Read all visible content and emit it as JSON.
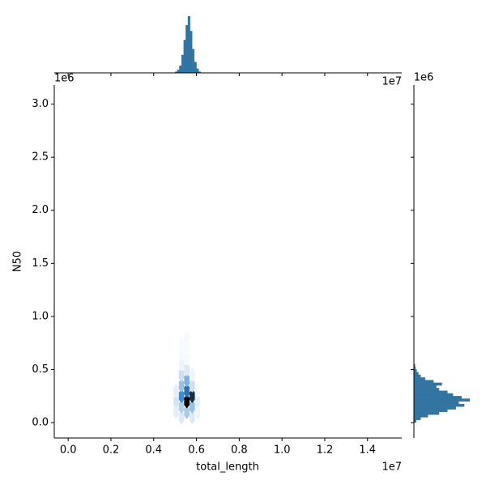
{
  "chart_data": {
    "type": "hexbin-joint",
    "x_label": "total_length",
    "y_label": "N50",
    "x_offset_label": "1e7",
    "y_offset_label": "1e6",
    "xlim": [
      -0.065,
      1.56
    ],
    "ylim": [
      -0.145,
      3.18
    ],
    "xticks": [
      {
        "value": 0,
        "label": "0.0"
      },
      0.2,
      0.4,
      0.6,
      0.8,
      {
        "value": 1,
        "label": "1.0"
      },
      1.2,
      1.4
    ],
    "yticks": [
      {
        "value": 0,
        "label": "0.0"
      },
      0.5,
      {
        "value": 1,
        "label": "1.0"
      },
      1.5,
      {
        "value": 2,
        "label": "2.0"
      },
      2.5,
      {
        "value": 3,
        "label": "3.0"
      }
    ],
    "color": "#3274a1",
    "hexbins": [
      {
        "x": 0.505,
        "y": 0.1,
        "count": 3
      },
      {
        "x": 0.505,
        "y": 0.2,
        "count": 5
      },
      {
        "x": 0.505,
        "y": 0.3,
        "count": 3
      },
      {
        "x": 0.53,
        "y": 0.05,
        "count": 4
      },
      {
        "x": 0.53,
        "y": 0.15,
        "count": 9
      },
      {
        "x": 0.53,
        "y": 0.25,
        "count": 22
      },
      {
        "x": 0.53,
        "y": 0.35,
        "count": 12
      },
      {
        "x": 0.53,
        "y": 0.45,
        "count": 6
      },
      {
        "x": 0.53,
        "y": 0.55,
        "count": 2
      },
      {
        "x": 0.53,
        "y": 0.65,
        "count": 1
      },
      {
        "x": 0.53,
        "y": 0.75,
        "count": 1
      },
      {
        "x": 0.555,
        "y": 0.1,
        "count": 10
      },
      {
        "x": 0.555,
        "y": 0.2,
        "count": 40
      },
      {
        "x": 0.555,
        "y": 0.3,
        "count": 26
      },
      {
        "x": 0.555,
        "y": 0.4,
        "count": 15
      },
      {
        "x": 0.555,
        "y": 0.5,
        "count": 4
      },
      {
        "x": 0.555,
        "y": 0.6,
        "count": 1
      },
      {
        "x": 0.555,
        "y": 0.7,
        "count": 1
      },
      {
        "x": 0.555,
        "y": 0.8,
        "count": 1
      },
      {
        "x": 0.58,
        "y": 0.05,
        "count": 4
      },
      {
        "x": 0.58,
        "y": 0.15,
        "count": 12
      },
      {
        "x": 0.58,
        "y": 0.25,
        "count": 34
      },
      {
        "x": 0.58,
        "y": 0.35,
        "count": 6
      },
      {
        "x": 0.58,
        "y": 0.45,
        "count": 2
      },
      {
        "x": 0.605,
        "y": 0.1,
        "count": 2
      },
      {
        "x": 0.605,
        "y": 0.2,
        "count": 3
      },
      {
        "x": 0.605,
        "y": 0.3,
        "count": 1
      }
    ],
    "x_hist": {
      "bins": [
        0.5,
        0.51,
        0.52,
        0.53,
        0.54,
        0.55,
        0.56,
        0.57,
        0.58,
        0.59,
        0.6,
        0.61,
        0.62
      ],
      "counts": [
        2,
        5,
        12,
        30,
        55,
        80,
        95,
        70,
        40,
        18,
        7,
        2
      ]
    },
    "y_hist": {
      "bins": [
        0,
        0.025,
        0.05,
        0.075,
        0.1,
        0.125,
        0.15,
        0.175,
        0.2,
        0.225,
        0.25,
        0.275,
        0.3,
        0.325,
        0.35,
        0.375,
        0.4,
        0.425,
        0.45,
        0.475,
        0.5,
        0.525,
        0.55
      ],
      "counts": [
        4,
        12,
        25,
        45,
        60,
        75,
        90,
        80,
        100,
        85,
        70,
        60,
        45,
        40,
        50,
        35,
        20,
        12,
        8,
        5,
        3,
        2
      ]
    }
  }
}
